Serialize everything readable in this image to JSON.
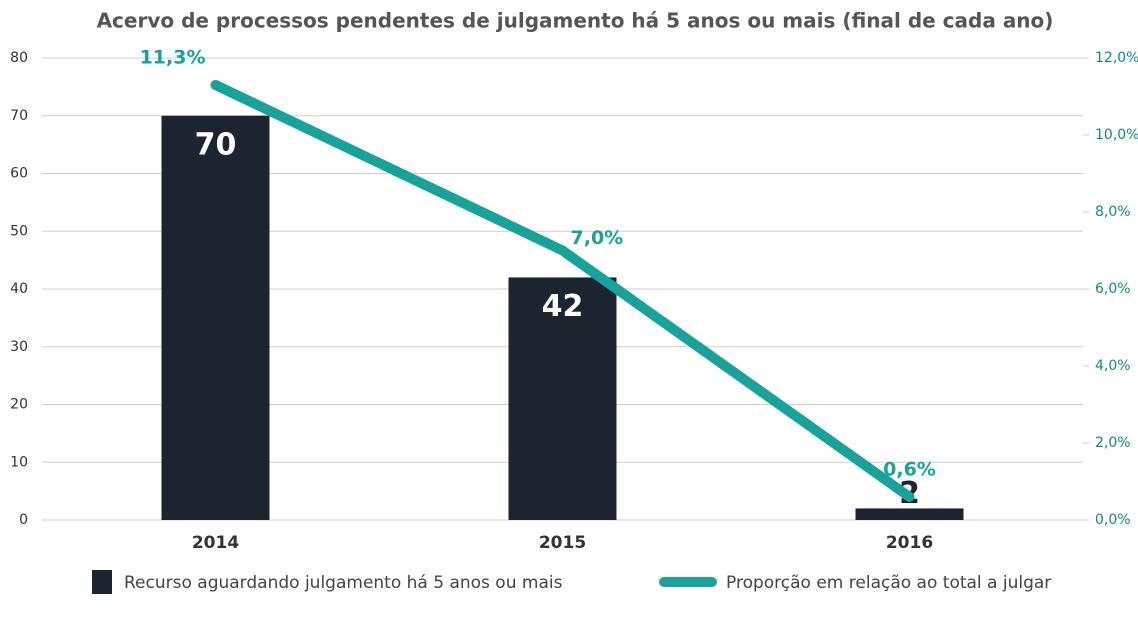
{
  "chart_data": {
    "type": "bar",
    "title": "Acervo de processos pendentes de julgamento há 5 anos ou mais (final de cada ano)",
    "categories": [
      "2014",
      "2015",
      "2016"
    ],
    "series": [
      {
        "name": "Recurso aguardando julgamento há 5 anos ou mais",
        "type": "bar",
        "color": "#1c2430",
        "values": [
          70,
          42,
          2
        ]
      },
      {
        "name": "Proporção em relação ao total a julgar",
        "type": "line",
        "axis": "y2",
        "color": "#17a39a",
        "values": [
          11.3,
          7.0,
          0.6
        ],
        "value_labels": [
          "11,3%",
          "7,0%",
          "0,6%"
        ]
      }
    ],
    "ylim": [
      0,
      80
    ],
    "yticks": [
      0,
      10,
      20,
      30,
      40,
      50,
      60,
      70,
      80
    ],
    "y2lim": [
      0,
      12
    ],
    "y2ticks": [
      {
        "value": 0,
        "label": "0,0%"
      },
      {
        "value": 2,
        "label": "2,0%"
      },
      {
        "value": 4,
        "label": "4,0%"
      },
      {
        "value": 6,
        "label": "6,0%"
      },
      {
        "value": 8,
        "label": "8,0%"
      },
      {
        "value": 10,
        "label": "10,0%"
      },
      {
        "value": 12,
        "label": "12,0%"
      }
    ],
    "grid": true,
    "legend": "bottom"
  }
}
